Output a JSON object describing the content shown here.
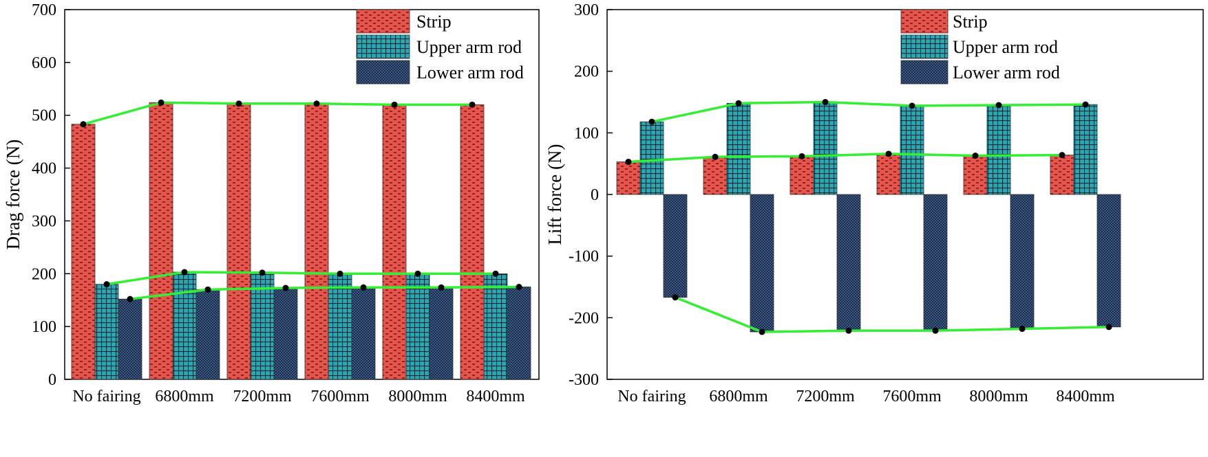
{
  "colors": {
    "strip": "#e8544c",
    "upper": "#2aa7b4",
    "lower": "#3b5a86",
    "trend": "#33ee33"
  },
  "chart_data": [
    {
      "type": "bar",
      "categories": [
        "No fairing",
        "6800mm",
        "7200mm",
        "7600mm",
        "8000mm",
        "8400mm"
      ],
      "series": [
        {
          "name": "Strip",
          "values": [
            483,
            524,
            522,
            522,
            520,
            520
          ]
        },
        {
          "name": "Upper arm rod",
          "values": [
            180,
            203,
            202,
            200,
            200,
            200
          ]
        },
        {
          "name": "Lower arm rod",
          "values": [
            152,
            170,
            173,
            174,
            174,
            175
          ]
        }
      ],
      "title": "",
      "xlabel": "",
      "ylabel": "Drag force (N)",
      "ylim": [
        0,
        700
      ],
      "yticks": [
        0,
        100,
        200,
        300,
        400,
        500,
        600,
        700
      ],
      "legend": "top-right",
      "trend_lines": true
    },
    {
      "type": "bar",
      "categories": [
        "No fairing",
        "6800mm",
        "7200mm",
        "7600mm",
        "8000mm",
        "8400mm"
      ],
      "series": [
        {
          "name": "Strip",
          "values": [
            53,
            61,
            62,
            66,
            63,
            64
          ]
        },
        {
          "name": "Upper arm rod",
          "values": [
            118,
            148,
            150,
            144,
            145,
            146
          ]
        },
        {
          "name": "Lower arm rod",
          "values": [
            -167,
            -223,
            -221,
            -221,
            -218,
            -215
          ]
        }
      ],
      "title": "",
      "xlabel": "",
      "ylabel": "Lift force (N)",
      "ylim": [
        -300,
        300
      ],
      "yticks": [
        -300,
        -200,
        -100,
        0,
        100,
        200,
        300
      ],
      "legend": "top-right",
      "trend_lines": true
    }
  ]
}
